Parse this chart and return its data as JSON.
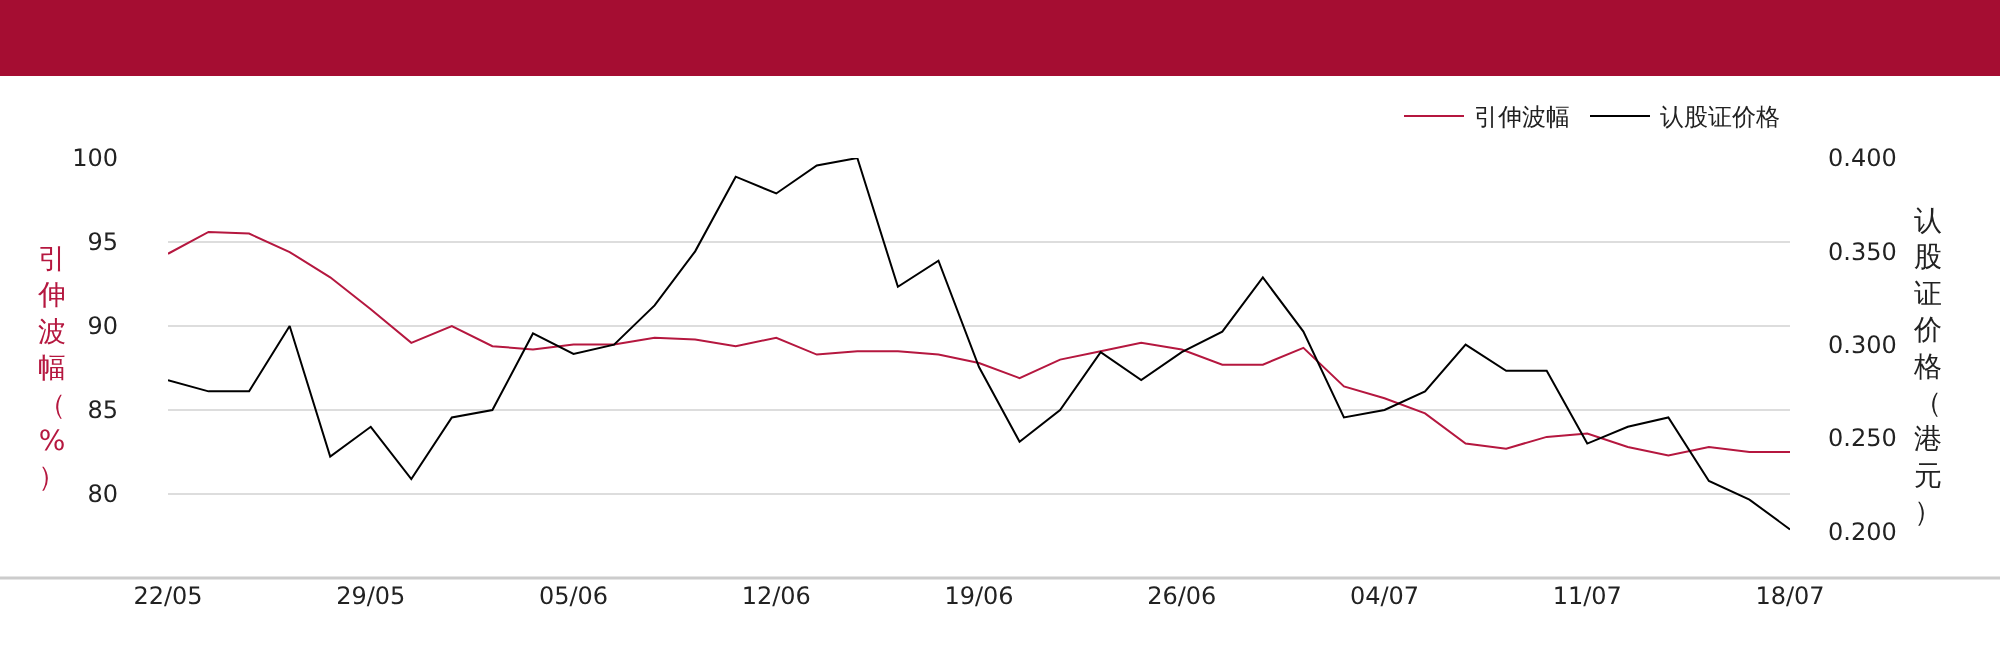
{
  "chart_data": {
    "type": "line",
    "categories": [
      "22/05",
      null,
      null,
      null,
      null,
      "29/05",
      null,
      null,
      null,
      null,
      "05/06",
      null,
      null,
      null,
      null,
      "12/06",
      null,
      null,
      null,
      null,
      "19/06",
      null,
      null,
      null,
      null,
      "26/06",
      null,
      null,
      null,
      null,
      "04/07",
      null,
      null,
      null,
      null,
      "11/07",
      null,
      null,
      null,
      null,
      "18/07"
    ],
    "ylabel": "引伸波幅（%）",
    "y2label": "认股证价格（港元）",
    "ylim": [
      75,
      100
    ],
    "yticks": [
      80,
      85,
      90,
      95,
      100
    ],
    "y2lim": [
      0.175,
      0.4
    ],
    "y2ticks": [
      {
        "value": 0.2,
        "label": "0.200"
      },
      {
        "value": 0.25,
        "label": "0.250"
      },
      {
        "value": 0.3,
        "label": "0.300"
      },
      {
        "value": 0.35,
        "label": "0.350"
      },
      {
        "value": 0.4,
        "label": "0.400"
      }
    ],
    "grid": "y",
    "legend": "top right",
    "marker": "none",
    "line_style": "solid",
    "series": [
      {
        "name": "引伸波幅",
        "color": "#b5173f",
        "values": [
          94.3,
          95.6,
          95.5,
          94.4,
          92.9,
          91.0,
          89.0,
          90.0,
          88.8,
          88.6,
          88.9,
          88.9,
          89.3,
          89.2,
          88.8,
          89.3,
          88.3,
          88.5,
          88.5,
          88.3,
          87.8,
          86.9,
          88.0,
          88.5,
          89.0,
          88.6,
          87.7,
          87.7,
          88.7,
          86.4,
          85.7,
          84.8,
          83.0,
          82.7,
          83.4,
          83.6,
          82.8,
          82.3,
          82.8,
          82.5,
          82.5
        ]
      },
      {
        "name": "认股证价格",
        "color": "#000000",
        "axis": "y2",
        "values": [
          0.281,
          0.275,
          0.275,
          0.31,
          0.24,
          0.256,
          0.228,
          0.261,
          0.265,
          0.306,
          0.295,
          0.3,
          0.321,
          0.35,
          0.39,
          0.381,
          0.396,
          0.4,
          0.331,
          0.345,
          0.288,
          0.248,
          0.265,
          0.296,
          0.281,
          0.296,
          0.307,
          0.336,
          0.307,
          0.261,
          0.265,
          0.275,
          0.3,
          0.286,
          0.286,
          0.247,
          0.256,
          0.261,
          0.227,
          0.217,
          0.201
        ]
      }
    ]
  }
}
